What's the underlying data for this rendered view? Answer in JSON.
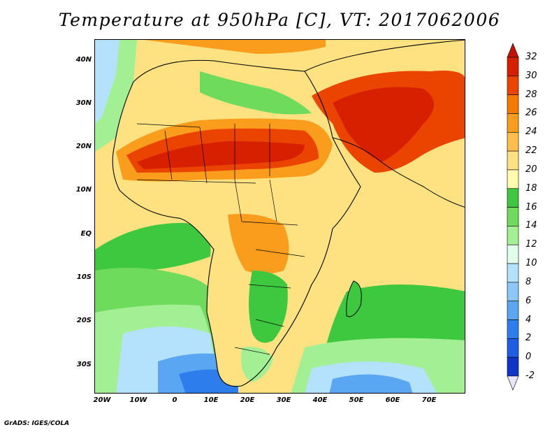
{
  "title": "Temperature at 950hPa [C], VT: 2017062006",
  "footer": "GrADS: IGES/COLA",
  "lat_labels": [
    "40N",
    "30N",
    "20N",
    "10N",
    "EQ",
    "10S",
    "20S",
    "30S"
  ],
  "lon_labels": [
    "20W",
    "10W",
    "0",
    "10E",
    "20E",
    "30E",
    "40E",
    "50E",
    "60E",
    "70E"
  ],
  "colorbar": {
    "labels": [
      "32",
      "30",
      "28",
      "26",
      "24",
      "22",
      "20",
      "18",
      "16",
      "14",
      "12",
      "10",
      "8",
      "6",
      "4",
      "2",
      "0",
      "-2"
    ],
    "colors": [
      "#d62000",
      "#ea4400",
      "#f47a00",
      "#fa9c1c",
      "#fdbf4a",
      "#fee281",
      "#fffcb0",
      "#3dc83f",
      "#6edb5c",
      "#a3ef93",
      "#e1fde9",
      "#b4e1fb",
      "#8cc7f8",
      "#5aa6f2",
      "#2d7ded",
      "#1e5de4",
      "#0e34c8",
      "#0a1b8a"
    ],
    "low_color": "#0a1b8a",
    "high_color": "#c21400",
    "below_color": "#e8e4fb"
  },
  "palette": {
    "ocean_south": "#6edb5c",
    "ocean_cool": "#a3ef93",
    "ocean_cold": "#b4e1fb",
    "ocean_coldest": "#5aa6f2",
    "deep_cold": "#2d7ded",
    "warm": "#fee281",
    "hot": "#fa9c1c",
    "very_hot": "#ea4400",
    "hottest": "#d62000",
    "land_green": "#3dc83f",
    "mediterranean": "#6edb5c",
    "atlantic_nw": "#a3ef93",
    "coast_line": "#000000"
  }
}
